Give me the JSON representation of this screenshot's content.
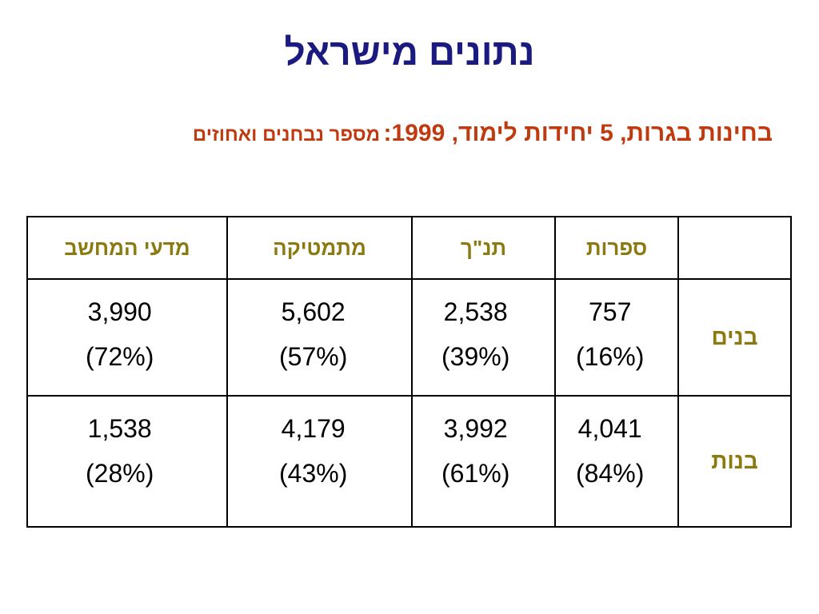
{
  "title": "נתונים מישראל",
  "subtitle": {
    "main": "בחינות בגרות, 5 יחידות לימוד, 1999:",
    "note": "מספר נבחנים ואחוזים"
  },
  "table": {
    "headers": [
      "",
      "ספרות",
      "תנ\"ך",
      "מתמטיקה",
      "מדעי המחשב"
    ],
    "rows": [
      {
        "label": "בנים",
        "cells": [
          {
            "count": "757",
            "percent": "(16%)"
          },
          {
            "count": "2,538",
            "percent": "(39%)"
          },
          {
            "count": "5,602",
            "percent": "(57%)"
          },
          {
            "count": "3,990",
            "percent": "(72%)"
          }
        ]
      },
      {
        "label": "בנות",
        "cells": [
          {
            "count": "4,041",
            "percent": "(84%)"
          },
          {
            "count": "3,992",
            "percent": "(61%)"
          },
          {
            "count": "4,179",
            "percent": "(43%)"
          },
          {
            "count": "1,538",
            "percent": "(28%)"
          }
        ]
      }
    ]
  },
  "colors": {
    "title": "#1a1a80",
    "subtitle": "#c03a10",
    "header_text": "#8a7a10",
    "border": "#000000"
  }
}
